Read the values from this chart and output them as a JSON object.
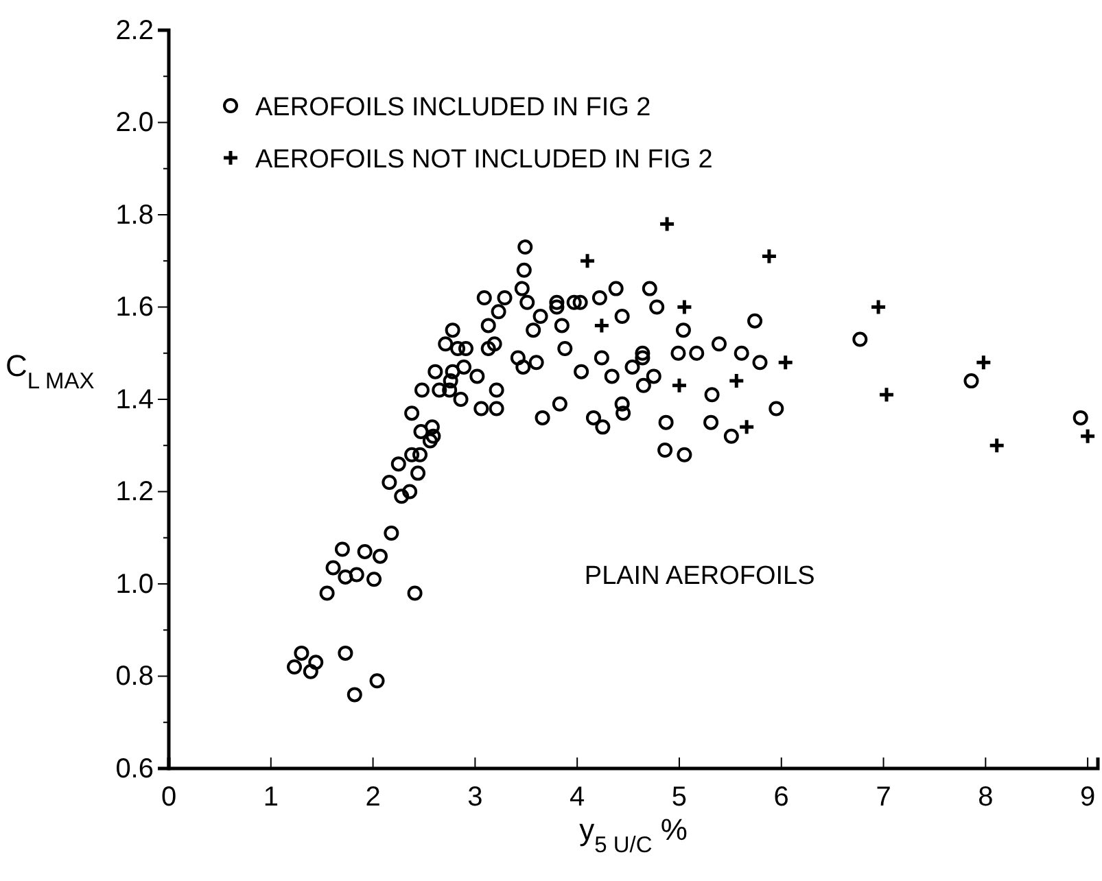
{
  "chart_data": {
    "type": "scatter",
    "xlabel": "y$_{5 U/C}$ %",
    "ylabel": "C$_{L MAX}$",
    "xlim": [
      0,
      9.1
    ],
    "xticks": [
      0,
      1,
      2,
      3,
      4,
      5,
      6,
      7,
      8,
      9
    ],
    "ylim": [
      0.6,
      2.2
    ],
    "yticks": [
      0.6,
      {
        "value": 0.7,
        "label": null
      },
      0.8,
      {
        "value": 0.9,
        "label": null
      },
      {
        "value": 1.0,
        "label": "1.0"
      },
      {
        "value": 1.1,
        "label": null
      },
      1.2,
      {
        "value": 1.3,
        "label": null
      },
      1.4,
      {
        "value": 1.5,
        "label": null
      },
      1.6,
      {
        "value": 1.7,
        "label": null
      },
      1.8,
      {
        "value": 1.9,
        "label": null
      },
      {
        "value": 2.0,
        "label": "2.0"
      },
      {
        "value": 2.1,
        "label": null
      },
      2.2
    ],
    "grid": false,
    "legend": "top left",
    "annotations": [
      "PLAIN AEROFOILS"
    ],
    "series": [
      {
        "name": "AEROFOILS INCLUDED IN FIG 2",
        "color": "#000000",
        "marker": "circle",
        "x": [
          1.3,
          1.23,
          1.39,
          1.44,
          1.73,
          1.82,
          2.04,
          1.55,
          1.61,
          1.7,
          1.73,
          1.84,
          1.92,
          2.01,
          2.07,
          2.18,
          2.41,
          2.16,
          2.28,
          2.36,
          2.44,
          2.25,
          2.38,
          2.46,
          2.38,
          2.47,
          2.58,
          2.56,
          2.59,
          2.48,
          2.65,
          2.75,
          2.61,
          2.78,
          2.76,
          2.89,
          3.02,
          2.86,
          3.06,
          3.21,
          3.21,
          2.71,
          2.83,
          2.91,
          2.78,
          3.13,
          3.19,
          3.13,
          3.23,
          3.09,
          3.29,
          3.49,
          3.48,
          3.46,
          3.51,
          3.64,
          3.57,
          3.85,
          3.8,
          3.8,
          3.97,
          4.03,
          3.88,
          4.04,
          3.42,
          3.47,
          3.6,
          3.83,
          3.66,
          4.22,
          4.38,
          4.71,
          4.78,
          4.44,
          5.04,
          5.74,
          4.24,
          4.64,
          4.64,
          4.54,
          4.75,
          4.65,
          4.34,
          4.99,
          5.17,
          5.39,
          5.61,
          5.79,
          5.32,
          5.95,
          4.16,
          4.25,
          4.44,
          4.45,
          4.87,
          5.31,
          5.51,
          4.86,
          5.05,
          6.77,
          7.86,
          8.93
        ],
        "values": [
          0.85,
          0.82,
          0.81,
          0.83,
          0.85,
          0.76,
          0.79,
          0.98,
          1.035,
          1.075,
          1.015,
          1.02,
          1.07,
          1.01,
          1.06,
          1.11,
          0.98,
          1.22,
          1.19,
          1.2,
          1.24,
          1.26,
          1.28,
          1.28,
          1.37,
          1.33,
          1.34,
          1.31,
          1.32,
          1.42,
          1.42,
          1.42,
          1.46,
          1.46,
          1.44,
          1.47,
          1.45,
          1.4,
          1.38,
          1.42,
          1.38,
          1.52,
          1.51,
          1.51,
          1.55,
          1.51,
          1.52,
          1.56,
          1.59,
          1.62,
          1.62,
          1.73,
          1.68,
          1.64,
          1.61,
          1.58,
          1.55,
          1.56,
          1.61,
          1.6,
          1.61,
          1.61,
          1.51,
          1.46,
          1.49,
          1.47,
          1.48,
          1.39,
          1.36,
          1.62,
          1.64,
          1.64,
          1.6,
          1.58,
          1.55,
          1.57,
          1.49,
          1.5,
          1.49,
          1.47,
          1.45,
          1.43,
          1.45,
          1.5,
          1.5,
          1.52,
          1.5,
          1.48,
          1.41,
          1.38,
          1.36,
          1.34,
          1.39,
          1.37,
          1.35,
          1.35,
          1.32,
          1.29,
          1.28,
          1.53,
          1.44,
          1.36
        ]
      },
      {
        "name": "AEROFOILS NOT INCLUDED IN FIG 2",
        "color": "#000000",
        "marker": "cross",
        "x": [
          4.88,
          4.1,
          5.88,
          5.05,
          4.24,
          6.04,
          5.0,
          5.56,
          5.66,
          6.95,
          7.98,
          7.03,
          8.11,
          9.0
        ],
        "values": [
          1.78,
          1.7,
          1.71,
          1.6,
          1.56,
          1.48,
          1.43,
          1.44,
          1.34,
          1.6,
          1.48,
          1.41,
          1.3,
          1.32
        ]
      }
    ]
  }
}
